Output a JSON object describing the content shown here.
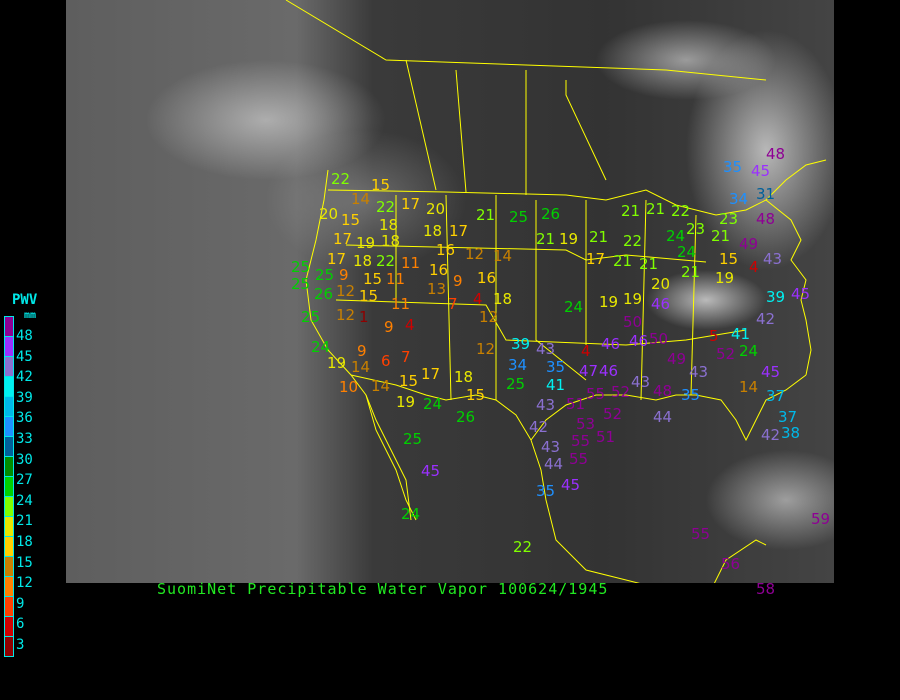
{
  "title": "SuomiNet Precipitable Water Vapor 100624/1945",
  "legend": {
    "title": "PWV",
    "unit": "mm",
    "labels": [
      "48",
      "45",
      "42",
      "39",
      "36",
      "33",
      "30",
      "27",
      "24",
      "21",
      "18",
      "15",
      "12",
      "9",
      "6",
      "3"
    ],
    "colors": [
      "#8e0094",
      "#9b30ff",
      "#8a70d0",
      "#00f0f0",
      "#00b8e8",
      "#1e90ff",
      "#00609a",
      "#008c00",
      "#00d000",
      "#80ff00",
      "#e8e800",
      "#ffd000",
      "#c88000",
      "#ff8000",
      "#ff4000",
      "#d00000",
      "#900000"
    ]
  },
  "map": {
    "background": "satellite infrared imagery",
    "boundary_color": "#ffff00"
  },
  "stations": [
    "22",
    "15",
    "14",
    "22",
    "17",
    "20",
    "15",
    "18",
    "20",
    "21",
    "25",
    "26",
    "17",
    "19",
    "18",
    "22",
    "18",
    "17",
    "16",
    "21",
    "19",
    "21",
    "22",
    "17",
    "21",
    "21",
    "17",
    "18",
    "16",
    "12",
    "14",
    "16",
    "25",
    "25",
    "9",
    "15",
    "11",
    "11",
    "13",
    "25",
    "26",
    "12",
    "15",
    "7",
    "4",
    "9",
    "18",
    "11",
    "25",
    "12",
    "1",
    "9",
    "4",
    "12",
    "24",
    "19",
    "19",
    "20",
    "21",
    "46",
    "50",
    "24",
    "19",
    "14",
    "9",
    "6",
    "7",
    "10",
    "14",
    "15",
    "17",
    "18",
    "19",
    "24",
    "15",
    "26",
    "12",
    "39",
    "43",
    "34",
    "35",
    "41",
    "25",
    "43",
    "42",
    "4",
    "46",
    "46",
    "47",
    "46",
    "55",
    "51",
    "53",
    "52",
    "52",
    "43",
    "48",
    "35",
    "44",
    "50",
    "49",
    "43",
    "52",
    "24",
    "41",
    "5",
    "14",
    "45",
    "37",
    "37",
    "42",
    "38",
    "43",
    "55",
    "51",
    "44",
    "55",
    "45",
    "35",
    "25",
    "45",
    "24",
    "22",
    "55",
    "59",
    "56",
    "58",
    "35",
    "45",
    "48",
    "34",
    "31",
    "48",
    "49",
    "43",
    "4",
    "39",
    "45",
    "42",
    "22",
    "21",
    "21",
    "23",
    "24",
    "21",
    "23",
    "15",
    "24",
    "19"
  ]
}
